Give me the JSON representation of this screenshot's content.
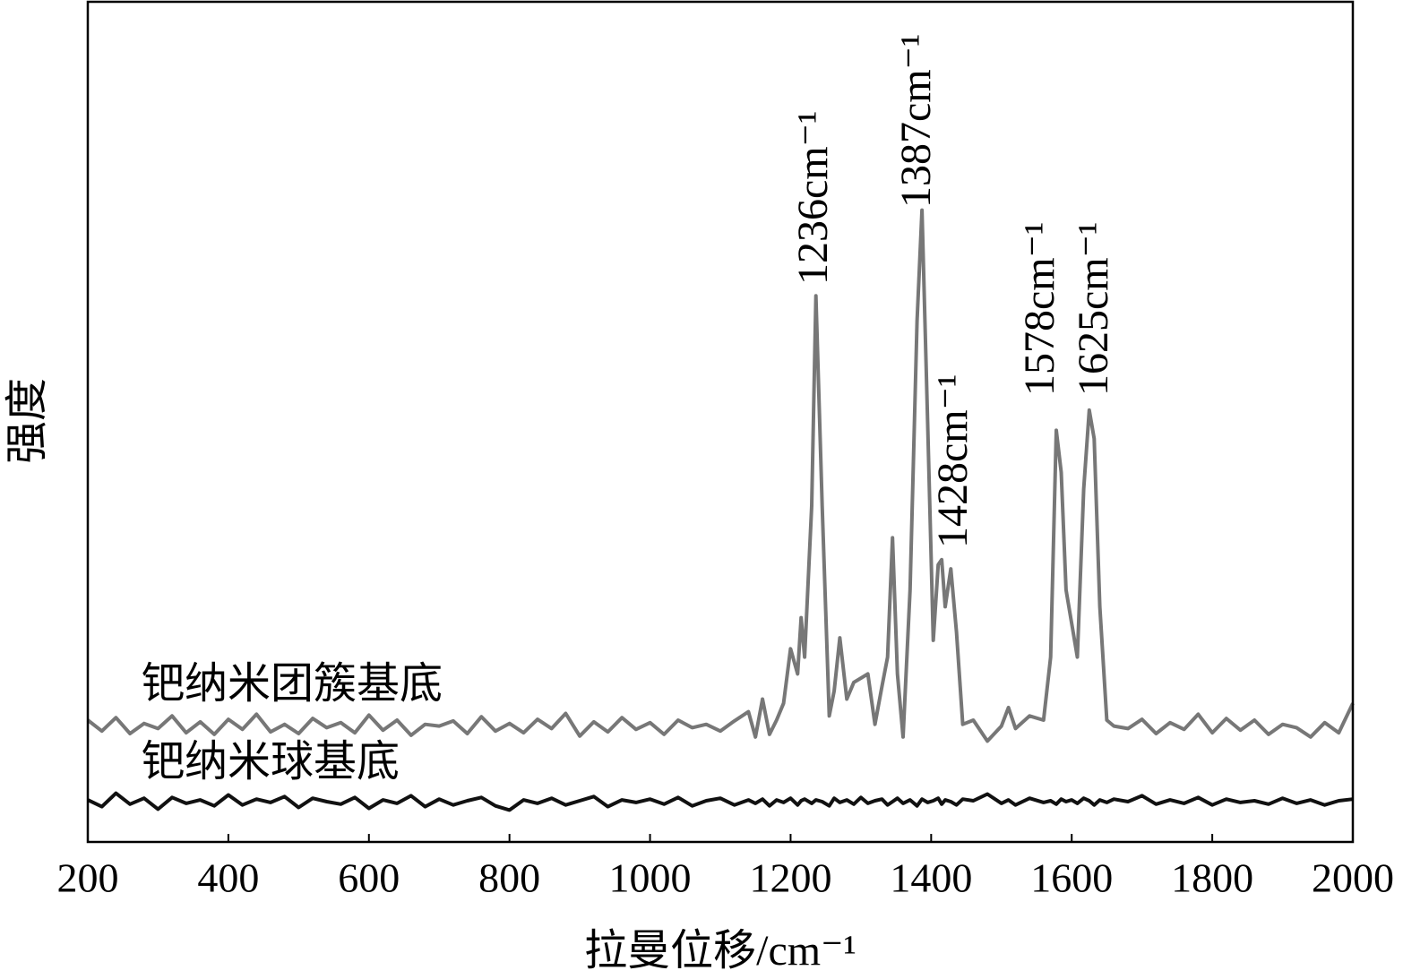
{
  "chart_data": {
    "type": "line",
    "x_label": "拉曼位移/cm⁻¹",
    "y_label": "强度",
    "xlim": [
      200,
      2000
    ],
    "xticks": [
      200,
      400,
      600,
      800,
      1000,
      1200,
      1400,
      1600,
      1800,
      2000
    ],
    "ylim": [
      0,
      100
    ],
    "x": [
      200,
      220,
      240,
      260,
      280,
      300,
      320,
      340,
      360,
      380,
      400,
      420,
      440,
      460,
      480,
      500,
      520,
      540,
      560,
      580,
      600,
      620,
      640,
      660,
      680,
      700,
      720,
      740,
      760,
      780,
      800,
      820,
      840,
      860,
      880,
      900,
      920,
      940,
      960,
      980,
      1000,
      1020,
      1040,
      1060,
      1080,
      1100,
      1120,
      1140,
      1150,
      1160,
      1170,
      1180,
      1190,
      1200,
      1210,
      1215,
      1220,
      1230,
      1236,
      1245,
      1255,
      1262,
      1270,
      1280,
      1290,
      1300,
      1310,
      1320,
      1330,
      1338,
      1345,
      1352,
      1360,
      1370,
      1380,
      1387,
      1395,
      1403,
      1410,
      1415,
      1420,
      1428,
      1436,
      1445,
      1460,
      1480,
      1500,
      1510,
      1520,
      1540,
      1560,
      1570,
      1578,
      1585,
      1592,
      1600,
      1608,
      1617,
      1625,
      1632,
      1640,
      1650,
      1660,
      1680,
      1700,
      1720,
      1740,
      1760,
      1780,
      1800,
      1820,
      1840,
      1860,
      1880,
      1900,
      1920,
      1940,
      1960,
      1980,
      2000
    ],
    "series": [
      {
        "name": "钯纳米团簇基底",
        "color": "#777777",
        "values": [
          14.5,
          13.2,
          14.8,
          12.9,
          14.1,
          13.5,
          15.0,
          13.0,
          14.3,
          12.8,
          14.6,
          13.4,
          15.2,
          13.1,
          14.0,
          12.9,
          14.7,
          13.6,
          14.2,
          13.0,
          15.1,
          13.3,
          14.5,
          12.7,
          14.0,
          13.8,
          14.4,
          12.9,
          14.9,
          13.2,
          14.1,
          13.0,
          14.6,
          13.5,
          15.3,
          12.6,
          14.3,
          13.1,
          14.8,
          13.4,
          14.2,
          12.8,
          14.5,
          13.6,
          14.0,
          13.2,
          14.4,
          15.5,
          12.5,
          17.0,
          12.8,
          14.5,
          16.5,
          23.0,
          20.0,
          26.7,
          22.0,
          40.0,
          65.0,
          40.0,
          15.0,
          18.0,
          24.3,
          17.0,
          19.0,
          19.5,
          20.0,
          14.0,
          18.5,
          22.0,
          36.2,
          20.0,
          12.5,
          30.0,
          62.0,
          75.2,
          50.0,
          24.0,
          33.0,
          33.6,
          28.0,
          32.5,
          25.0,
          14.0,
          14.5,
          12.0,
          13.8,
          16.0,
          13.5,
          15.0,
          14.5,
          22.0,
          49.0,
          44.0,
          30.0,
          26.0,
          22.0,
          42.0,
          51.4,
          48.0,
          28.0,
          14.5,
          13.8,
          13.5,
          14.6,
          12.9,
          14.2,
          13.4,
          15.2,
          13.0,
          14.7,
          13.3,
          14.5,
          12.8,
          14.0,
          13.6,
          12.5,
          14.2,
          13.0,
          16.5
        ]
      },
      {
        "name": "钯纳米球基底",
        "color": "#111111",
        "values": [
          5.0,
          4.2,
          5.8,
          4.5,
          5.2,
          3.9,
          5.3,
          4.6,
          5.0,
          4.3,
          5.6,
          4.4,
          5.1,
          4.7,
          5.4,
          4.1,
          5.2,
          4.8,
          4.5,
          5.3,
          4.0,
          5.0,
          4.6,
          5.5,
          4.2,
          5.1,
          4.4,
          4.9,
          5.3,
          4.3,
          3.8,
          5.0,
          4.6,
          5.2,
          4.4,
          4.9,
          5.4,
          4.2,
          5.0,
          4.7,
          5.1,
          4.5,
          5.3,
          4.3,
          4.9,
          5.2,
          4.4,
          5.0,
          4.6,
          5.1,
          4.3,
          5.0,
          4.7,
          5.2,
          4.4,
          4.9,
          5.1,
          4.6,
          5.0,
          4.8,
          4.3,
          5.2,
          4.7,
          5.0,
          4.5,
          5.3,
          4.6,
          4.9,
          5.1,
          4.4,
          4.8,
          5.2,
          4.6,
          5.0,
          4.3,
          5.1,
          4.7,
          4.9,
          5.2,
          4.5,
          5.0,
          4.8,
          4.4,
          5.1,
          4.9,
          5.7,
          4.6,
          5.0,
          4.4,
          5.2,
          4.7,
          4.9,
          4.5,
          5.1,
          4.8,
          5.0,
          4.6,
          5.2,
          4.9,
          4.4,
          5.0,
          4.7,
          5.1,
          4.8,
          5.5,
          4.5,
          5.0,
          4.6,
          5.3,
          4.4,
          5.1,
          4.7,
          4.9,
          4.5,
          5.2,
          4.6,
          5.0,
          4.4,
          4.9,
          5.1
        ]
      }
    ],
    "annotations": [
      "1236cm⁻¹",
      "1387cm⁻¹",
      "1428cm⁻¹",
      "1578cm⁻¹",
      "1625cm⁻¹"
    ]
  }
}
